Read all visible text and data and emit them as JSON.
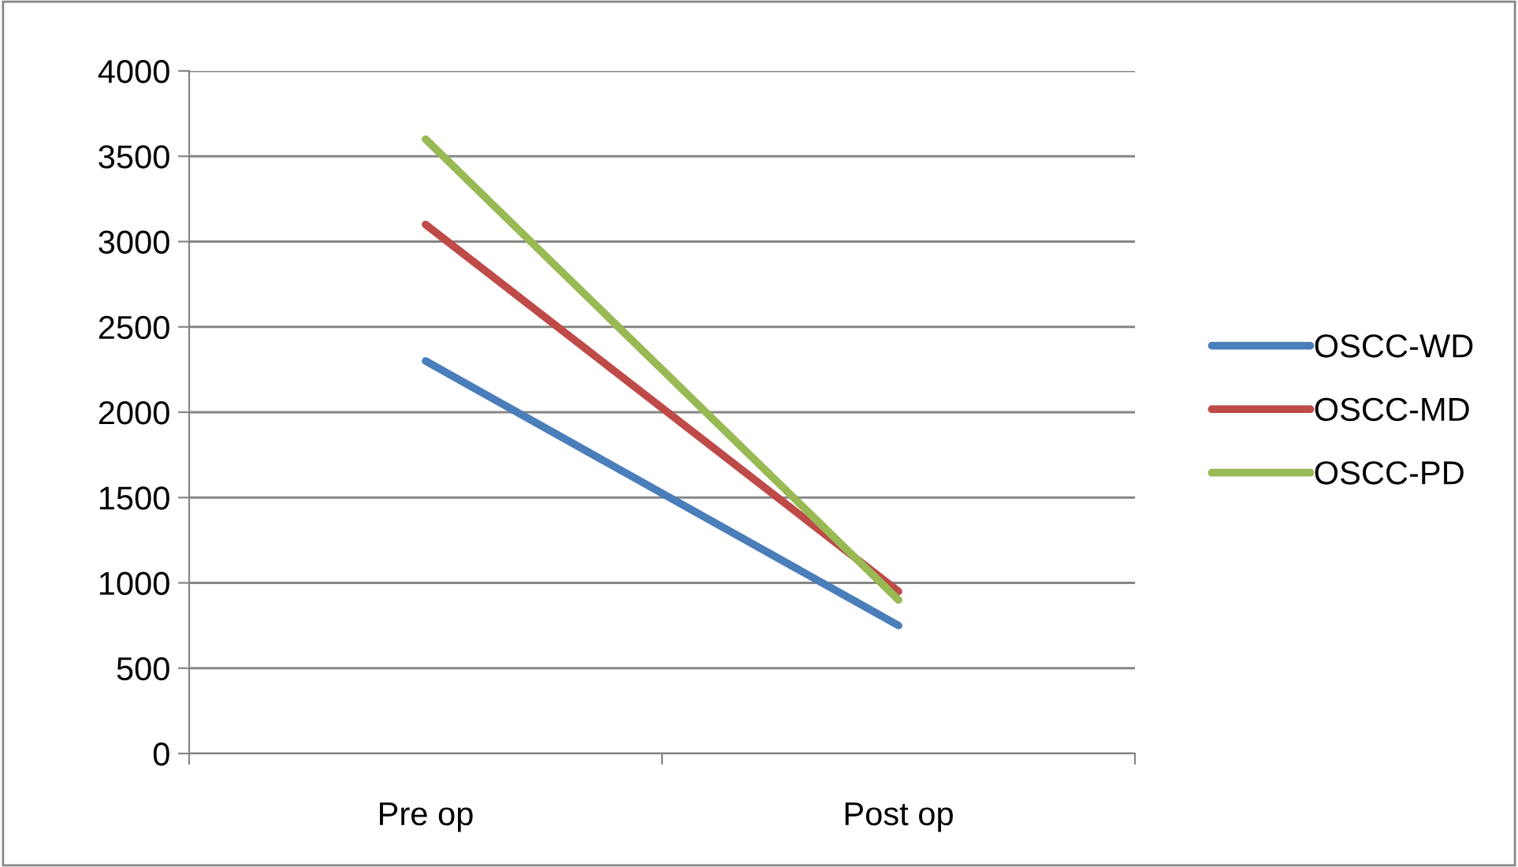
{
  "chart_data": {
    "type": "line",
    "categories": [
      "Pre op",
      "Post op"
    ],
    "series": [
      {
        "name": "OSCC-WD",
        "color": "#4a7ebb",
        "values": [
          2300,
          750
        ]
      },
      {
        "name": "OSCC-MD",
        "color": "#be4b48",
        "values": [
          3100,
          950
        ]
      },
      {
        "name": "OSCC-PD",
        "color": "#98b954",
        "values": [
          3600,
          900
        ]
      }
    ],
    "ylim": [
      0,
      4000
    ],
    "yticks": [
      0,
      500,
      1000,
      1500,
      2000,
      2500,
      3000,
      3500,
      4000
    ],
    "grid": "y",
    "legend": "right",
    "marker": "none",
    "line_style": "solid"
  }
}
